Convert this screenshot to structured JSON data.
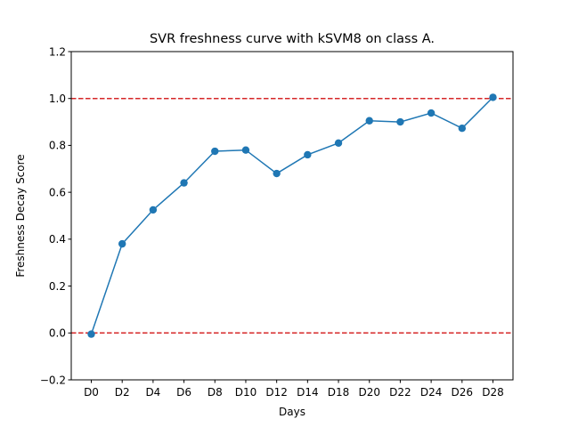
{
  "chart_data": {
    "type": "line",
    "title": "SVR freshness curve with kSVM8 on class A.",
    "xlabel": "Days",
    "ylabel": "Freshness Decay Score",
    "categories": [
      "D0",
      "D2",
      "D4",
      "D6",
      "D8",
      "D10",
      "D12",
      "D14",
      "D18",
      "D20",
      "D22",
      "D24",
      "D26",
      "D28"
    ],
    "series": [
      {
        "values": [
          -0.005,
          0.38,
          0.525,
          0.64,
          0.775,
          0.78,
          0.68,
          0.76,
          0.81,
          0.905,
          0.9,
          0.938,
          0.873,
          1.005
        ],
        "color": "#1f77b4"
      }
    ],
    "reference_lines": [
      {
        "y": 1.0,
        "color": "#d62728",
        "style": "dashed"
      },
      {
        "y": 0.0,
        "color": "#d62728",
        "style": "dashed"
      }
    ],
    "ylim": [
      -0.2,
      1.2
    ],
    "yticks": [
      -0.2,
      0.0,
      0.2,
      0.4,
      0.6,
      0.8,
      1.0,
      1.2
    ],
    "ytick_labels": [
      "−0.2",
      "0.0",
      "0.2",
      "0.4",
      "0.6",
      "0.8",
      "1.0",
      "1.2"
    ],
    "grid": false,
    "legend": "none"
  }
}
